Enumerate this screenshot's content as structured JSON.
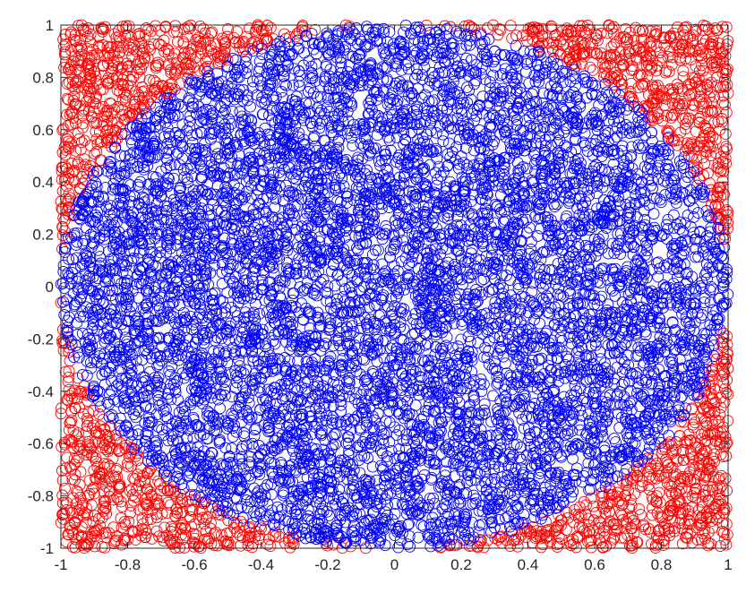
{
  "chart_data": {
    "type": "scatter",
    "title": "",
    "xlabel": "",
    "ylabel": "",
    "xlim": [
      -1,
      1
    ],
    "ylim": [
      -1,
      1
    ],
    "grid": false,
    "legend": "none",
    "marker": "open-circle",
    "x_ticks": [
      "-1",
      "-0.8",
      "-0.6",
      "-0.4",
      "-0.2",
      "0",
      "0.2",
      "0.4",
      "0.6",
      "0.8",
      "1"
    ],
    "y_ticks": [
      "1",
      "0.8",
      "0.6",
      "0.4",
      "0.2",
      "0",
      "-0.2",
      "-0.4",
      "-0.6",
      "-0.8",
      "-1"
    ],
    "series": [
      {
        "color": "#ff0000",
        "rule": "points with x^2 + y^2 > 1",
        "distribution": "uniform random over [-1,1] x [-1,1]",
        "approx_count": 2150
      },
      {
        "color": "#0000ff",
        "rule": "points with x^2 + y^2 <= 1",
        "distribution": "uniform random over [-1,1] x [-1,1]",
        "approx_count": 7850
      }
    ]
  }
}
